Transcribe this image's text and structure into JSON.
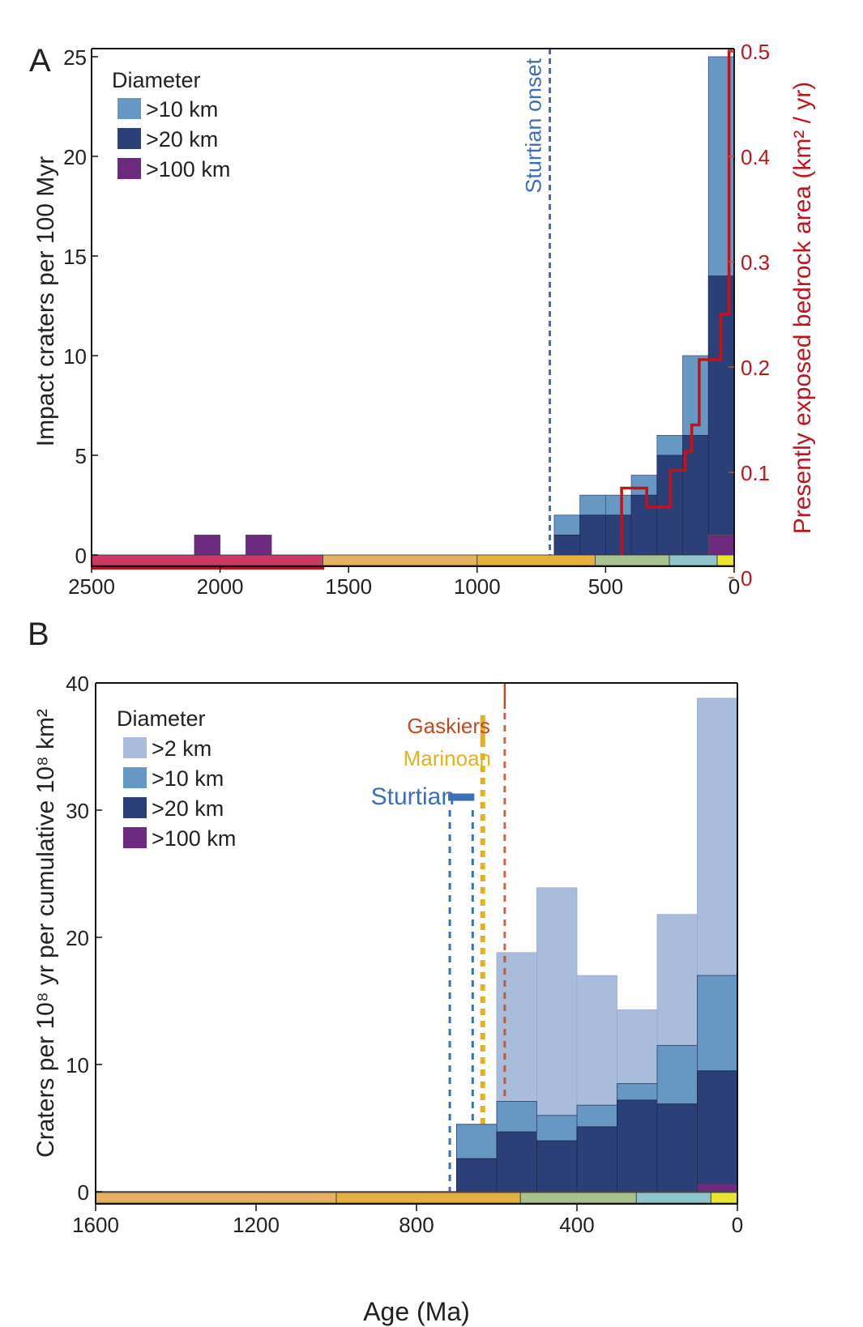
{
  "chart_data": [
    {
      "panel": "A",
      "type": "bar",
      "subtype": "stacked histogram with step line",
      "title": "",
      "xlabel": "",
      "ylabel": "Impact craters per 100 Myr",
      "y2label": "Presently exposed bedrock area (km² / yr)",
      "xlim": [
        2500,
        0
      ],
      "ylim": [
        0,
        25
      ],
      "y2lim": [
        0,
        0.5
      ],
      "xticks": [
        "2500",
        "2000",
        "1500",
        "1000",
        "500",
        "0"
      ],
      "yticks": [
        "0",
        "5",
        "10",
        "15",
        "20",
        "25"
      ],
      "y2ticks": [
        "0",
        "0.1",
        "0.2",
        "0.3",
        "0.4",
        "0.5"
      ],
      "legend": {
        "title": "Diameter",
        "placement": "top-left",
        "entries": [
          ">10 km",
          ">20 km",
          ">100 km"
        ]
      },
      "colors": {
        ">10 km": "#6797c3",
        ">20 km": "#2b3f78",
        ">100 km": "#6e2a80",
        "line": "#c0141d"
      },
      "bins": [
        {
          "from": 2100,
          "to": 2000,
          ">10 km": 1,
          ">20 km": 1,
          ">100 km": 1
        },
        {
          "from": 1900,
          "to": 1800,
          ">10 km": 1,
          ">20 km": 1,
          ">100 km": 1
        },
        {
          "from": 700,
          "to": 600,
          ">10 km": 2,
          ">20 km": 1,
          ">100 km": 0
        },
        {
          "from": 600,
          "to": 500,
          ">10 km": 3,
          ">20 km": 2,
          ">100 km": 0
        },
        {
          "from": 500,
          "to": 400,
          ">10 km": 3,
          ">20 km": 2,
          ">100 km": 0
        },
        {
          "from": 400,
          "to": 300,
          ">10 km": 4,
          ">20 km": 3,
          ">100 km": 0
        },
        {
          "from": 300,
          "to": 200,
          ">10 km": 6,
          ">20 km": 5,
          ">100 km": 0
        },
        {
          "from": 200,
          "to": 100,
          ">10 km": 10,
          ">20 km": 6,
          ">100 km": 0
        },
        {
          "from": 100,
          "to": 0,
          ">10 km": 25,
          ">20 km": 14,
          ">100 km": 1
        }
      ],
      "bedrock_area_step": [
        {
          "from": 2500,
          "to": 1600,
          "value": 0.009
        },
        {
          "from": 1600,
          "to": 1000,
          "value": 0.012
        },
        {
          "from": 1000,
          "to": 438,
          "value": 0.02
        },
        {
          "from": 438,
          "to": 340,
          "value": 0.085
        },
        {
          "from": 340,
          "to": 249,
          "value": 0.067
        },
        {
          "from": 249,
          "to": 190,
          "value": 0.102
        },
        {
          "from": 190,
          "to": 165,
          "value": 0.12
        },
        {
          "from": 165,
          "to": 136,
          "value": 0.145
        },
        {
          "from": 136,
          "to": 52,
          "value": 0.207
        },
        {
          "from": 52,
          "to": 20,
          "value": 0.25
        },
        {
          "from": 20,
          "to": 0,
          "value": 0.5
        }
      ],
      "annotations": [
        {
          "label": "Sturtian onset",
          "x": 717,
          "color": "#3d6fb8",
          "style": "dashed"
        }
      ],
      "timescale": [
        {
          "from": 2500,
          "to": 1600,
          "color": "#c93a64"
        },
        {
          "from": 1600,
          "to": 1000,
          "color": "#e7b162"
        },
        {
          "from": 1000,
          "to": 541,
          "color": "#e7af3e"
        },
        {
          "from": 541,
          "to": 252,
          "color": "#a9c28d"
        },
        {
          "from": 252,
          "to": 66,
          "color": "#8ec4cc"
        },
        {
          "from": 66,
          "to": 0,
          "color": "#ebe431"
        }
      ]
    },
    {
      "panel": "B",
      "type": "bar",
      "subtype": "stacked histogram",
      "title": "",
      "xlabel": "Age (Ma)",
      "ylabel": "Craters per 10⁸ yr per cumulative 10⁸ km²",
      "xlim": [
        1600,
        0
      ],
      "ylim": [
        0,
        40
      ],
      "xticks": [
        "1600",
        "1200",
        "800",
        "400",
        "0"
      ],
      "yticks": [
        "0",
        "10",
        "20",
        "30",
        "40"
      ],
      "legend": {
        "title": "Diameter",
        "placement": "top-left",
        "entries": [
          ">2 km",
          ">10 km",
          ">20 km",
          ">100 km"
        ]
      },
      "colors": {
        ">2 km": "#a9bcdc",
        ">10 km": "#6797c3",
        ">20 km": "#2b3f78",
        ">100 km": "#6e2a80"
      },
      "bins": [
        {
          "from": 700,
          "to": 600,
          ">2 km": 0,
          ">10 km": 5.3,
          ">20 km": 2.6,
          ">100 km": 0
        },
        {
          "from": 600,
          "to": 500,
          ">2 km": 18.8,
          ">10 km": 7.1,
          ">20 km": 4.7,
          ">100 km": 0
        },
        {
          "from": 500,
          "to": 400,
          ">2 km": 23.9,
          ">10 km": 6.0,
          ">20 km": 4.0,
          ">100 km": 0
        },
        {
          "from": 400,
          "to": 300,
          ">2 km": 17.0,
          ">10 km": 6.8,
          ">20 km": 5.1,
          ">100 km": 0
        },
        {
          "from": 300,
          "to": 200,
          ">2 km": 14.3,
          ">10 km": 8.5,
          ">20 km": 7.2,
          ">100 km": 0
        },
        {
          "from": 200,
          "to": 100,
          ">2 km": 21.8,
          ">10 km": 11.5,
          ">20 km": 6.9,
          ">100 km": 0
        },
        {
          "from": 100,
          "to": 0,
          ">2 km": 38.8,
          ">10 km": 17.0,
          ">20 km": 9.5,
          ">100 km": 0.6
        }
      ],
      "annotations": [
        {
          "label": "Gaskiers",
          "x": 580,
          "color": "#c24a1f",
          "style": "dashed"
        },
        {
          "label": "Marinoan",
          "x": 635,
          "color": "#e2b11c",
          "style": "dashed-thick"
        },
        {
          "label": "Sturtian",
          "x_range": [
            717,
            660
          ],
          "color": "#3d6fb8",
          "style": "dashed"
        }
      ],
      "timescale": [
        {
          "from": 1600,
          "to": 1000,
          "color": "#e7b162"
        },
        {
          "from": 1000,
          "to": 541,
          "color": "#e7af3e"
        },
        {
          "from": 541,
          "to": 252,
          "color": "#a9c28d"
        },
        {
          "from": 252,
          "to": 66,
          "color": "#8ec4cc"
        },
        {
          "from": 66,
          "to": 0,
          "color": "#ebe431"
        }
      ]
    }
  ],
  "labels": {
    "panel_a": "A",
    "panel_b": "B"
  }
}
